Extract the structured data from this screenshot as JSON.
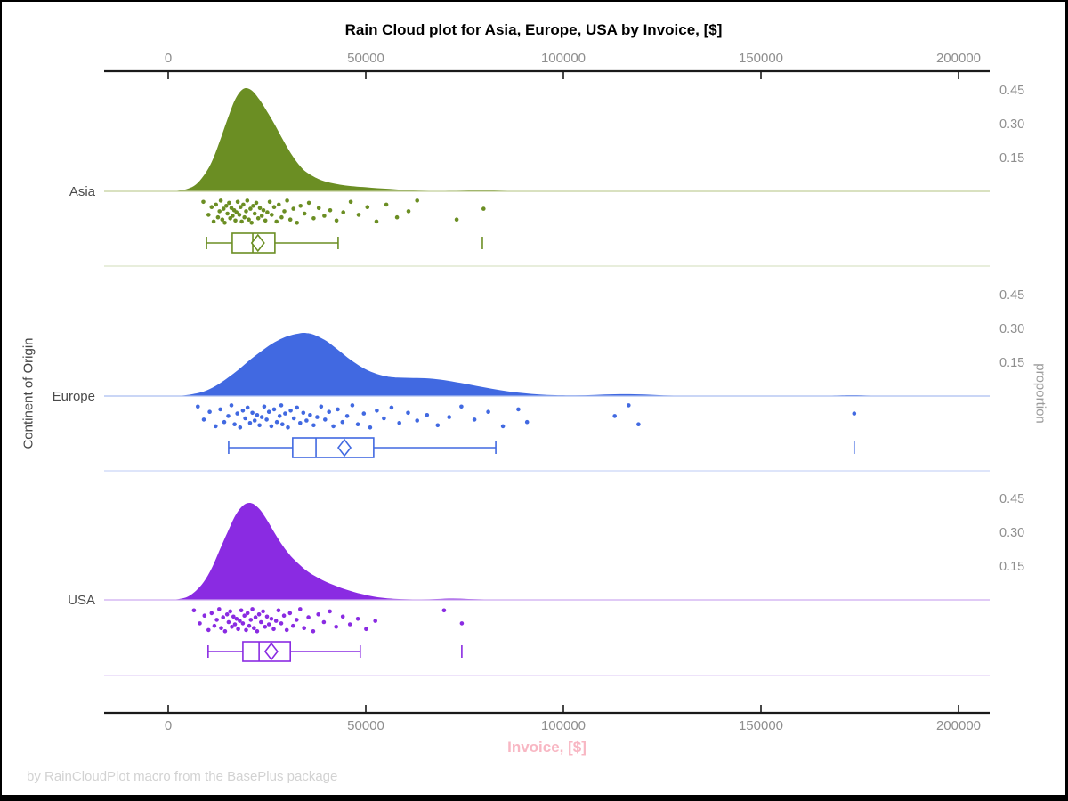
{
  "title": "Rain Cloud plot for Asia, Europe, USA by Invoice, [$]",
  "footer": "by RainCloudPlot macro from the BasePlus package",
  "styles": {
    "title_color": "#000000",
    "axis_color": "#1a1a1a",
    "tick_label_color": "#8e8e8e",
    "category_label_color": "#4a4a4a",
    "left_label_color": "#444444",
    "right_label_color": "#9b9b9b",
    "xlabel_color": "#F8B7C3",
    "footer_color": "#d2d2d2"
  },
  "chart_data": {
    "type": "raincloud",
    "title": "Rain Cloud plot for Asia, Europe, USA by Invoice, [$]",
    "xlabel": "Invoice, [$]",
    "ylabel_left": "Continent of Origin",
    "ylabel_right": "proportion",
    "x_tick_values": [
      0,
      50000,
      100000,
      150000,
      200000
    ],
    "x_tick_labels": [
      "0",
      "50000",
      "100000",
      "150000",
      "200000"
    ],
    "x_range": [
      0,
      200000
    ],
    "proportion_tick_values": [
      0.15,
      0.3,
      0.45
    ],
    "proportion_tick_labels": [
      "0.15",
      "0.30",
      "0.45"
    ],
    "jitter_cycle": [
      0.1,
      0.62,
      0.31,
      0.89,
      0.21,
      0.72,
      0.48,
      0.05,
      0.81,
      0.38,
      0.94,
      0.26,
      0.57,
      0.14,
      0.76,
      0.35,
      0.66,
      0.44,
      0.85,
      0.52
    ],
    "panels": [
      {
        "label": "Asia",
        "color": "#6B8E23",
        "baseline_color": "#C2CF9B",
        "separator_color": "#DAE3C6",
        "density": [
          [
            1000,
            0
          ],
          [
            3000,
            0.004
          ],
          [
            5000,
            0.012
          ],
          [
            7000,
            0.03
          ],
          [
            9000,
            0.07
          ],
          [
            11000,
            0.13
          ],
          [
            13000,
            0.22
          ],
          [
            15000,
            0.32
          ],
          [
            17000,
            0.41
          ],
          [
            19000,
            0.455
          ],
          [
            21000,
            0.45
          ],
          [
            23000,
            0.41
          ],
          [
            25000,
            0.355
          ],
          [
            27000,
            0.295
          ],
          [
            29000,
            0.23
          ],
          [
            31000,
            0.17
          ],
          [
            33000,
            0.12
          ],
          [
            35000,
            0.085
          ],
          [
            38000,
            0.055
          ],
          [
            41000,
            0.038
          ],
          [
            44000,
            0.028
          ],
          [
            47000,
            0.022
          ],
          [
            50000,
            0.018
          ],
          [
            53000,
            0.014
          ],
          [
            56000,
            0.011
          ],
          [
            59000,
            0.007
          ],
          [
            62000,
            0.004
          ],
          [
            66000,
            0.002
          ],
          [
            70000,
            0.002
          ],
          [
            74000,
            0.003
          ],
          [
            78000,
            0.005
          ],
          [
            81000,
            0.005
          ],
          [
            84000,
            0.003
          ],
          [
            88000,
            0.001
          ],
          [
            92000,
            0
          ]
        ],
        "points": [
          8900,
          10200,
          11000,
          11500,
          12100,
          12600,
          13000,
          13300,
          13700,
          14000,
          14300,
          14700,
          15000,
          15400,
          15700,
          16000,
          16300,
          16700,
          17000,
          17300,
          17600,
          18000,
          18300,
          18600,
          19000,
          19300,
          19700,
          20000,
          20400,
          20800,
          21100,
          21500,
          21900,
          22300,
          22800,
          23200,
          23700,
          24100,
          24600,
          25100,
          25700,
          26200,
          26800,
          27400,
          28000,
          28700,
          29400,
          30100,
          30900,
          31700,
          32600,
          33500,
          34500,
          35600,
          36800,
          38100,
          39500,
          41000,
          42600,
          44300,
          46200,
          48200,
          50400,
          52700,
          55200,
          57900,
          60800,
          63000,
          73000,
          79800
        ],
        "box": {
          "whisker_low": 9700,
          "q1": 16200,
          "median": 21400,
          "q3": 27000,
          "whisker_high": 43000,
          "mean": 22700,
          "outliers": [
            79500
          ]
        }
      },
      {
        "label": "Europe",
        "color": "#4169E1",
        "baseline_color": "#ABBEF0",
        "separator_color": "#C9D5F6",
        "density": [
          [
            2000,
            0
          ],
          [
            4000,
            0.003
          ],
          [
            6000,
            0.008
          ],
          [
            9000,
            0.02
          ],
          [
            12000,
            0.045
          ],
          [
            15000,
            0.08
          ],
          [
            18000,
            0.12
          ],
          [
            21000,
            0.165
          ],
          [
            24000,
            0.205
          ],
          [
            27000,
            0.24
          ],
          [
            30000,
            0.265
          ],
          [
            33000,
            0.278
          ],
          [
            35000,
            0.28
          ],
          [
            37000,
            0.272
          ],
          [
            40000,
            0.245
          ],
          [
            43000,
            0.205
          ],
          [
            46000,
            0.163
          ],
          [
            49000,
            0.128
          ],
          [
            52000,
            0.103
          ],
          [
            55000,
            0.088
          ],
          [
            58000,
            0.082
          ],
          [
            62000,
            0.08
          ],
          [
            66000,
            0.078
          ],
          [
            70000,
            0.07
          ],
          [
            74000,
            0.058
          ],
          [
            78000,
            0.045
          ],
          [
            82000,
            0.032
          ],
          [
            86000,
            0.021
          ],
          [
            90000,
            0.013
          ],
          [
            94000,
            0.007
          ],
          [
            98000,
            0.004
          ],
          [
            103000,
            0.003
          ],
          [
            108000,
            0.005
          ],
          [
            113000,
            0.008
          ],
          [
            118000,
            0.008
          ],
          [
            123000,
            0.005
          ],
          [
            128000,
            0.002
          ],
          [
            134000,
            0.001
          ],
          [
            140000,
            0
          ],
          [
            162000,
            0
          ],
          [
            168000,
            0.002
          ],
          [
            173000,
            0.004
          ],
          [
            178000,
            0.002
          ],
          [
            184000,
            0
          ]
        ],
        "points": [
          7500,
          9000,
          10500,
          12000,
          13200,
          14200,
          15200,
          16000,
          16800,
          17500,
          18200,
          18900,
          19500,
          20100,
          20700,
          21300,
          21900,
          22500,
          23100,
          23700,
          24300,
          24900,
          25500,
          26100,
          26800,
          27500,
          28200,
          28600,
          28900,
          29600,
          30300,
          31000,
          31800,
          32600,
          33400,
          34200,
          35000,
          35900,
          36800,
          37700,
          38700,
          39700,
          40700,
          41800,
          42900,
          44100,
          45300,
          46600,
          48000,
          49500,
          51100,
          52800,
          54600,
          56500,
          58500,
          60700,
          63000,
          65500,
          68200,
          71100,
          74200,
          77500,
          81000,
          84700,
          88600,
          90800,
          113000,
          116500,
          119000,
          173600
        ],
        "box": {
          "whisker_low": 15300,
          "q1": 31500,
          "median": 37400,
          "q3": 52000,
          "whisker_high": 82900,
          "mean": 44600,
          "outliers": [
            173600
          ]
        }
      },
      {
        "label": "USA",
        "color": "#8A2BE2",
        "baseline_color": "#CEABF0",
        "separator_color": "#E3D2F6",
        "density": [
          [
            1000,
            0
          ],
          [
            3000,
            0.005
          ],
          [
            5000,
            0.015
          ],
          [
            7000,
            0.04
          ],
          [
            9000,
            0.08
          ],
          [
            11000,
            0.14
          ],
          [
            13000,
            0.22
          ],
          [
            15000,
            0.3
          ],
          [
            17000,
            0.375
          ],
          [
            19000,
            0.42
          ],
          [
            21000,
            0.43
          ],
          [
            23000,
            0.405
          ],
          [
            25000,
            0.355
          ],
          [
            27000,
            0.295
          ],
          [
            29000,
            0.24
          ],
          [
            31000,
            0.195
          ],
          [
            33000,
            0.16
          ],
          [
            35000,
            0.13
          ],
          [
            37000,
            0.107
          ],
          [
            39000,
            0.088
          ],
          [
            41000,
            0.072
          ],
          [
            43000,
            0.058
          ],
          [
            45000,
            0.046
          ],
          [
            47000,
            0.035
          ],
          [
            49000,
            0.026
          ],
          [
            51000,
            0.018
          ],
          [
            53000,
            0.012
          ],
          [
            55000,
            0.008
          ],
          [
            57000,
            0.005
          ],
          [
            60000,
            0.003
          ],
          [
            64000,
            0.002
          ],
          [
            68000,
            0.004
          ],
          [
            72000,
            0.006
          ],
          [
            76000,
            0.004
          ],
          [
            80000,
            0.002
          ],
          [
            84000,
            0
          ]
        ],
        "points": [
          6500,
          8000,
          9200,
          10200,
          11000,
          11700,
          12300,
          12900,
          13400,
          13900,
          14400,
          14900,
          15300,
          15700,
          16100,
          16500,
          16900,
          17300,
          17700,
          18100,
          18500,
          18900,
          19300,
          19700,
          20100,
          20500,
          20900,
          21300,
          21700,
          22100,
          22500,
          23000,
          23500,
          24000,
          24500,
          25000,
          25500,
          26100,
          26700,
          27300,
          27900,
          28600,
          29300,
          30000,
          30800,
          31600,
          32500,
          33400,
          34400,
          35500,
          36700,
          38000,
          39400,
          40900,
          42500,
          44200,
          46000,
          48000,
          50100,
          52400,
          69800,
          74300
        ],
        "box": {
          "whisker_low": 10100,
          "q1": 18900,
          "median": 23000,
          "q3": 30900,
          "whisker_high": 48600,
          "mean": 26100,
          "outliers": [
            74300
          ]
        }
      }
    ]
  }
}
